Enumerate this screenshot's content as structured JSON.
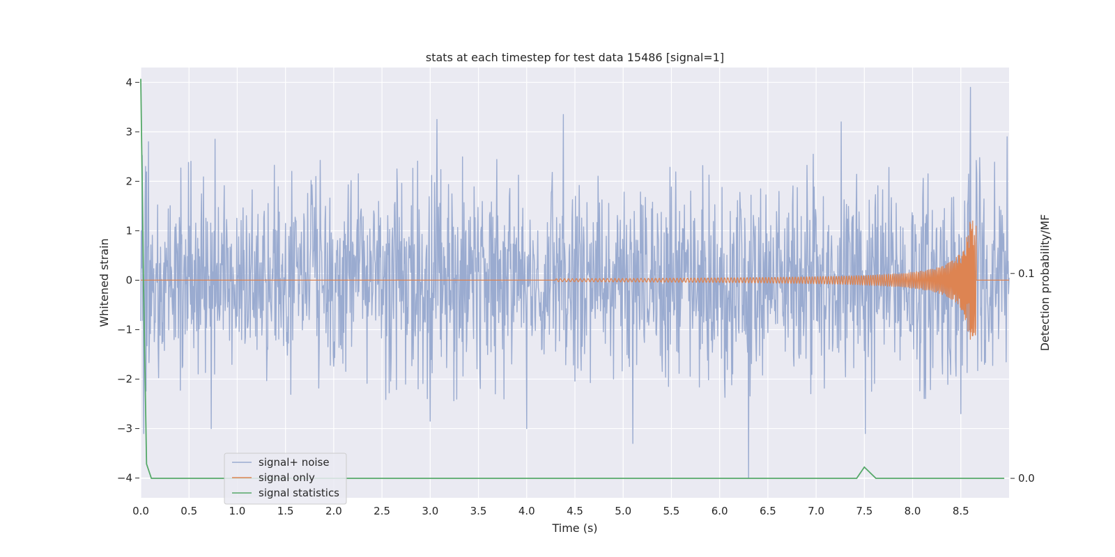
{
  "chart_data": {
    "type": "line",
    "title": "stats at each timestep for test data 15486 [signal=1]",
    "xlabel": "Time (s)",
    "ylabel": "Whitened strain",
    "y2label": "Detection probability/MF",
    "xlim": [
      0,
      9.0
    ],
    "ylim": [
      -4.4,
      4.3
    ],
    "y2lim": [
      -0.0095,
      0.2005
    ],
    "xticks": [
      0.0,
      0.5,
      1.0,
      1.5,
      2.0,
      2.5,
      3.0,
      3.5,
      4.0,
      4.5,
      5.0,
      5.5,
      6.0,
      6.5,
      7.0,
      7.5,
      8.0,
      8.5
    ],
    "xtick_labels": [
      "0.0",
      "0.5",
      "1.0",
      "1.5",
      "2.0",
      "2.5",
      "3.0",
      "3.5",
      "4.0",
      "4.5",
      "5.0",
      "5.5",
      "6.0",
      "6.5",
      "7.0",
      "7.5",
      "8.0",
      "8.5"
    ],
    "yticks": [
      4,
      3,
      2,
      1,
      0,
      -1,
      -2,
      -3,
      -4
    ],
    "ytick_labels": [
      "4",
      "3",
      "2",
      "1",
      "0",
      "−1",
      "−2",
      "−3",
      "−4"
    ],
    "y2ticks": [
      0.1,
      0.0
    ],
    "y2tick_labels": [
      "0.1",
      "0.0"
    ],
    "grid": true,
    "legend_position": "lower-left",
    "series": [
      {
        "name": "signal+ noise",
        "axis": "left",
        "color": "#9aabd0",
        "description": "dense whitened noise, roughly within -2.5..2.8",
        "peaks": [
          [
            0.05,
            2.3
          ],
          [
            0.08,
            2.8
          ],
          [
            0.77,
            2.85
          ],
          [
            3.07,
            3.25
          ],
          [
            4.38,
            3.35
          ],
          [
            7.26,
            3.2
          ],
          [
            8.6,
            3.9
          ],
          [
            8.98,
            2.9
          ]
        ],
        "troughs": [
          [
            0.03,
            -3.1
          ],
          [
            0.73,
            -3.0
          ],
          [
            3.0,
            -2.85
          ],
          [
            4.0,
            -3.0
          ],
          [
            5.1,
            -3.3
          ],
          [
            6.3,
            -4.0
          ],
          [
            7.51,
            -3.1
          ],
          [
            8.5,
            -2.7
          ]
        ]
      },
      {
        "name": "signal only",
        "axis": "left",
        "color": "#dd8452",
        "chirp_start": 4.3,
        "chirp_end": 8.66,
        "peak_amplitude": 1.2
      },
      {
        "name": "signal statistics",
        "axis": "right",
        "color": "#55a868",
        "x": [
          0.0,
          0.03,
          0.06,
          0.11,
          0.2,
          1.0,
          2.0,
          3.0,
          4.0,
          5.0,
          6.0,
          7.0,
          7.42,
          7.5,
          7.62,
          8.0,
          8.5,
          8.95
        ],
        "y": [
          0.195,
          0.09,
          0.007,
          0.0,
          0.0,
          0.0,
          0.0,
          0.0,
          0.0,
          0.0,
          0.0,
          0.0,
          0.0,
          0.0055,
          0.0,
          0.0,
          0.0,
          0.0
        ]
      }
    ]
  }
}
